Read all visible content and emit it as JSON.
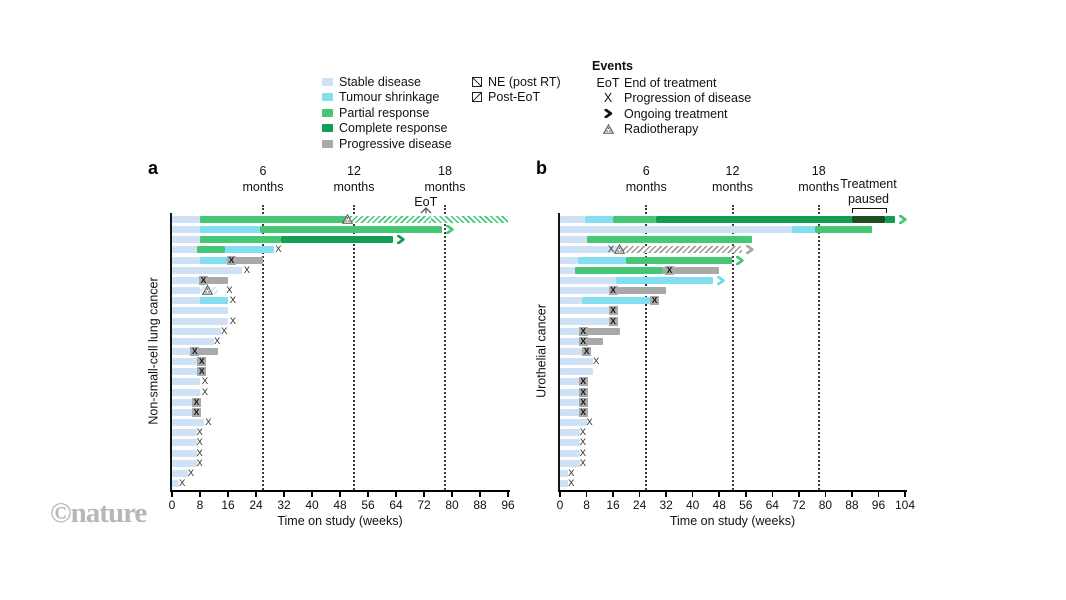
{
  "watermark": "©nature",
  "colors": {
    "stable": "#cfe2f5",
    "tumour_shrinkage": "#82dff0",
    "partial_response": "#45c776",
    "complete_response": "#119e52",
    "progressive_disease": "#a9a9a9",
    "treatment_paused": "#1e4d22",
    "axis": "#000000",
    "marker_x": "#2a2a2a"
  },
  "legend": {
    "disease_states": [
      {
        "label": "Stable disease",
        "color": "#cfe2f5"
      },
      {
        "label": "Tumour shrinkage",
        "color": "#82dff0"
      },
      {
        "label": "Partial response",
        "color": "#45c776"
      },
      {
        "label": "Complete response",
        "color": "#119e52"
      },
      {
        "label": "Progressive disease",
        "color": "#a9a9a9"
      }
    ],
    "hatches": [
      {
        "label": "NE (post RT)",
        "direction": "fwd"
      },
      {
        "label": "Post-EoT",
        "direction": "back"
      }
    ],
    "events": {
      "title": "Events",
      "items": [
        {
          "symbol": "EoT",
          "type": "text",
          "label": "End of treatment"
        },
        {
          "symbol": "X",
          "type": "x",
          "label": "Progression of disease"
        },
        {
          "symbol": "arrow",
          "type": "arrow",
          "label": "Ongoing treatment"
        },
        {
          "symbol": "radiotherapy",
          "type": "rt",
          "label": "Radiotherapy"
        }
      ]
    }
  },
  "segment_types": {
    "st": "Stable disease",
    "sh": "Tumour shrinkage",
    "pr": "Partial response",
    "cr": "Complete response",
    "pg": "Progressive disease",
    "pa": "Treatment paused",
    "hfg": "NE (post RT)",
    "hbg": "Post-EoT",
    "hfy": "NE (post RT)",
    "hst": "NE (post RT)"
  },
  "marker_types": {
    "x": "Progression of disease",
    "xb": "Progression of disease",
    "rt": "Radiotherapy",
    "a_pr": "Ongoing treatment",
    "a_cr": "Ongoing treatment",
    "a_sh": "Ongoing treatment",
    "a_gy": "Ongoing treatment"
  },
  "chart_data": [
    {
      "type": "bar",
      "subtype": "swimmer-plot",
      "panel_letter": "a",
      "ylabel": "Non-small-cell lung cancer",
      "xlabel": "Time on study (weeks)",
      "x_unit": "weeks",
      "xlim": [
        0,
        96
      ],
      "x_ticks": [
        0,
        8,
        16,
        24,
        32,
        40,
        48,
        56,
        64,
        72,
        80,
        88,
        96
      ],
      "month_lines": [
        {
          "week": 26,
          "num": "6",
          "word": "months"
        },
        {
          "week": 52,
          "num": "12",
          "word": "months"
        },
        {
          "week": 78,
          "num": "18",
          "word": "months"
        }
      ],
      "annotations": [
        {
          "type": "eot",
          "week": 72.5,
          "label": "EoT"
        }
      ],
      "rows": [
        {
          "s": [
            [
              0,
              8,
              "st"
            ],
            [
              8,
              50,
              "pr"
            ],
            [
              50,
              74,
              "hfg"
            ],
            [
              74,
              96,
              "hbg"
            ]
          ],
          "m": [
            [
              50,
              "rt"
            ]
          ]
        },
        {
          "s": [
            [
              0,
              8,
              "st"
            ],
            [
              8,
              25,
              "sh"
            ],
            [
              25,
              77,
              "pr"
            ]
          ],
          "m": [
            [
              78.5,
              "a_pr"
            ]
          ]
        },
        {
          "s": [
            [
              0,
              8,
              "st"
            ],
            [
              8,
              31,
              "pr"
            ],
            [
              31,
              63,
              "cr"
            ]
          ],
          "m": [
            [
              64.5,
              "a_cr"
            ]
          ]
        },
        {
          "s": [
            [
              0,
              7,
              "st"
            ],
            [
              7,
              15,
              "pr"
            ],
            [
              15,
              29,
              "sh"
            ]
          ],
          "m": [
            [
              30.5,
              "x"
            ]
          ]
        },
        {
          "s": [
            [
              0,
              8,
              "st"
            ],
            [
              8,
              16,
              "sh"
            ],
            [
              16,
              26,
              "pg"
            ]
          ],
          "m": [
            [
              17,
              "xb"
            ]
          ]
        },
        {
          "s": [
            [
              0,
              20,
              "st"
            ]
          ],
          "m": [
            [
              21.5,
              "x"
            ]
          ]
        },
        {
          "s": [
            [
              0,
              8,
              "st"
            ],
            [
              8,
              16,
              "pg"
            ]
          ],
          "m": [
            [
              9,
              "xb"
            ]
          ]
        },
        {
          "s": [
            [
              0,
              8,
              "st"
            ],
            [
              8,
              13,
              "hst"
            ]
          ],
          "m": [
            [
              10,
              "rt"
            ],
            [
              16.5,
              "x"
            ]
          ]
        },
        {
          "s": [
            [
              0,
              8,
              "st"
            ],
            [
              8,
              16,
              "sh"
            ]
          ],
          "m": [
            [
              17.5,
              "x"
            ]
          ]
        },
        {
          "s": [
            [
              0,
              16,
              "st"
            ]
          ],
          "m": []
        },
        {
          "s": [
            [
              0,
              16,
              "st"
            ]
          ],
          "m": [
            [
              17.5,
              "x"
            ]
          ]
        },
        {
          "s": [
            [
              0,
              14,
              "st"
            ]
          ],
          "m": [
            [
              15,
              "x"
            ]
          ]
        },
        {
          "s": [
            [
              0,
              12,
              "st"
            ]
          ],
          "m": [
            [
              13,
              "x"
            ]
          ]
        },
        {
          "s": [
            [
              0,
              6,
              "st"
            ],
            [
              6,
              13,
              "pg"
            ]
          ],
          "m": [
            [
              6.5,
              "xb"
            ]
          ]
        },
        {
          "s": [
            [
              0,
              8,
              "st"
            ]
          ],
          "m": [
            [
              8.5,
              "xb"
            ]
          ]
        },
        {
          "s": [
            [
              0,
              8,
              "st"
            ]
          ],
          "m": [
            [
              8.5,
              "xb"
            ]
          ]
        },
        {
          "s": [
            [
              0,
              8,
              "st"
            ]
          ],
          "m": [
            [
              9.5,
              "x"
            ]
          ]
        },
        {
          "s": [
            [
              0,
              8,
              "st"
            ]
          ],
          "m": [
            [
              9.5,
              "x"
            ]
          ]
        },
        {
          "s": [
            [
              0,
              6.5,
              "st"
            ]
          ],
          "m": [
            [
              7,
              "xb"
            ]
          ]
        },
        {
          "s": [
            [
              0,
              6.5,
              "st"
            ]
          ],
          "m": [
            [
              7,
              "xb"
            ]
          ]
        },
        {
          "s": [
            [
              0,
              9,
              "st"
            ]
          ],
          "m": [
            [
              10.5,
              "x"
            ]
          ]
        },
        {
          "s": [
            [
              0,
              7,
              "st"
            ]
          ],
          "m": [
            [
              8,
              "x"
            ]
          ]
        },
        {
          "s": [
            [
              0,
              7,
              "st"
            ]
          ],
          "m": [
            [
              8,
              "x"
            ]
          ]
        },
        {
          "s": [
            [
              0,
              7,
              "st"
            ]
          ],
          "m": [
            [
              8,
              "x"
            ]
          ]
        },
        {
          "s": [
            [
              0,
              7,
              "st"
            ]
          ],
          "m": [
            [
              8,
              "x"
            ]
          ]
        },
        {
          "s": [
            [
              0,
              4.5,
              "st"
            ]
          ],
          "m": [
            [
              5.5,
              "x"
            ]
          ]
        },
        {
          "s": [
            [
              0,
              2,
              "st"
            ]
          ],
          "m": [
            [
              3,
              "x"
            ]
          ]
        }
      ]
    },
    {
      "type": "bar",
      "subtype": "swimmer-plot",
      "panel_letter": "b",
      "ylabel": "Urothelial cancer",
      "xlabel": "Time on study (weeks)",
      "x_unit": "weeks",
      "xlim": [
        0,
        104
      ],
      "x_ticks": [
        0,
        8,
        16,
        24,
        32,
        40,
        48,
        56,
        64,
        72,
        80,
        88,
        96,
        104
      ],
      "month_lines": [
        {
          "week": 26,
          "num": "6",
          "word": "months"
        },
        {
          "week": 52,
          "num": "12",
          "word": "months"
        },
        {
          "week": 78,
          "num": "18",
          "word": "months"
        }
      ],
      "annotations": [
        {
          "type": "bracket",
          "from": 88,
          "to": 98,
          "label": "Treatment\npaused"
        }
      ],
      "rows": [
        {
          "s": [
            [
              0,
              7.5,
              "st"
            ],
            [
              7.5,
              16,
              "sh"
            ],
            [
              16,
              29,
              "pr"
            ],
            [
              29,
              88,
              "cr"
            ],
            [
              88,
              98,
              "pa"
            ],
            [
              98,
              101,
              "cr"
            ]
          ],
          "m": [
            [
              102.5,
              "a_pr"
            ]
          ]
        },
        {
          "s": [
            [
              0,
              70,
              "st"
            ],
            [
              70,
              77,
              "sh"
            ],
            [
              77,
              94,
              "pr"
            ]
          ],
          "m": []
        },
        {
          "s": [
            [
              0,
              8,
              "st"
            ],
            [
              8,
              58,
              "pr"
            ]
          ],
          "m": []
        },
        {
          "s": [
            [
              0,
              19,
              "st"
            ],
            [
              19,
              55,
              "hfy"
            ]
          ],
          "m": [
            [
              15.5,
              "x"
            ],
            [
              18,
              "rt"
            ],
            [
              56.5,
              "a_gy"
            ]
          ]
        },
        {
          "s": [
            [
              0,
              5.5,
              "st"
            ],
            [
              5.5,
              20,
              "sh"
            ],
            [
              20,
              52,
              "pr"
            ]
          ],
          "m": [
            [
              53.5,
              "a_pr"
            ]
          ]
        },
        {
          "s": [
            [
              0,
              4.5,
              "st"
            ],
            [
              4.5,
              31,
              "pr"
            ],
            [
              31,
              48,
              "pg"
            ]
          ],
          "m": [
            [
              33,
              "xb"
            ]
          ]
        },
        {
          "s": [
            [
              0,
              17,
              "st"
            ],
            [
              17,
              46,
              "sh"
            ]
          ],
          "m": [
            [
              47.5,
              "a_sh"
            ]
          ]
        },
        {
          "s": [
            [
              0,
              15,
              "st"
            ],
            [
              15,
              32,
              "pg"
            ]
          ],
          "m": [
            [
              16,
              "xb"
            ]
          ]
        },
        {
          "s": [
            [
              0,
              6.5,
              "st"
            ],
            [
              6.5,
              27,
              "sh"
            ]
          ],
          "m": [
            [
              28.5,
              "xb"
            ]
          ]
        },
        {
          "s": [
            [
              0,
              15,
              "st"
            ]
          ],
          "m": [
            [
              16,
              "xb"
            ]
          ]
        },
        {
          "s": [
            [
              0,
              15,
              "st"
            ]
          ],
          "m": [
            [
              16,
              "xb"
            ]
          ]
        },
        {
          "s": [
            [
              0,
              6,
              "st"
            ],
            [
              6,
              18,
              "pg"
            ]
          ],
          "m": [
            [
              7,
              "xb"
            ]
          ]
        },
        {
          "s": [
            [
              0,
              6,
              "st"
            ],
            [
              6,
              13,
              "pg"
            ]
          ],
          "m": [
            [
              7,
              "xb"
            ]
          ]
        },
        {
          "s": [
            [
              0,
              7,
              "st"
            ]
          ],
          "m": [
            [
              8,
              "xb"
            ]
          ]
        },
        {
          "s": [
            [
              0,
              10,
              "st"
            ]
          ],
          "m": [
            [
              11,
              "x"
            ]
          ]
        },
        {
          "s": [
            [
              0,
              10,
              "st"
            ]
          ],
          "m": []
        },
        {
          "s": [
            [
              0,
              6,
              "st"
            ]
          ],
          "m": [
            [
              7,
              "xb"
            ]
          ]
        },
        {
          "s": [
            [
              0,
              6,
              "st"
            ]
          ],
          "m": [
            [
              7,
              "xb"
            ]
          ]
        },
        {
          "s": [
            [
              0,
              6,
              "st"
            ]
          ],
          "m": [
            [
              7,
              "xb"
            ]
          ]
        },
        {
          "s": [
            [
              0,
              6,
              "st"
            ]
          ],
          "m": [
            [
              7,
              "xb"
            ]
          ]
        },
        {
          "s": [
            [
              0,
              8,
              "st"
            ]
          ],
          "m": [
            [
              9,
              "x"
            ]
          ]
        },
        {
          "s": [
            [
              0,
              6,
              "st"
            ]
          ],
          "m": [
            [
              7,
              "x"
            ]
          ]
        },
        {
          "s": [
            [
              0,
              6,
              "st"
            ]
          ],
          "m": [
            [
              7,
              "x"
            ]
          ]
        },
        {
          "s": [
            [
              0,
              6,
              "st"
            ]
          ],
          "m": [
            [
              7,
              "x"
            ]
          ]
        },
        {
          "s": [
            [
              0,
              6,
              "st"
            ]
          ],
          "m": [
            [
              7,
              "x"
            ]
          ]
        },
        {
          "s": [
            [
              0,
              2.5,
              "st"
            ]
          ],
          "m": [
            [
              3.5,
              "x"
            ]
          ]
        },
        {
          "s": [
            [
              0,
              2.5,
              "st"
            ]
          ],
          "m": [
            [
              3.5,
              "x"
            ]
          ]
        }
      ]
    }
  ]
}
